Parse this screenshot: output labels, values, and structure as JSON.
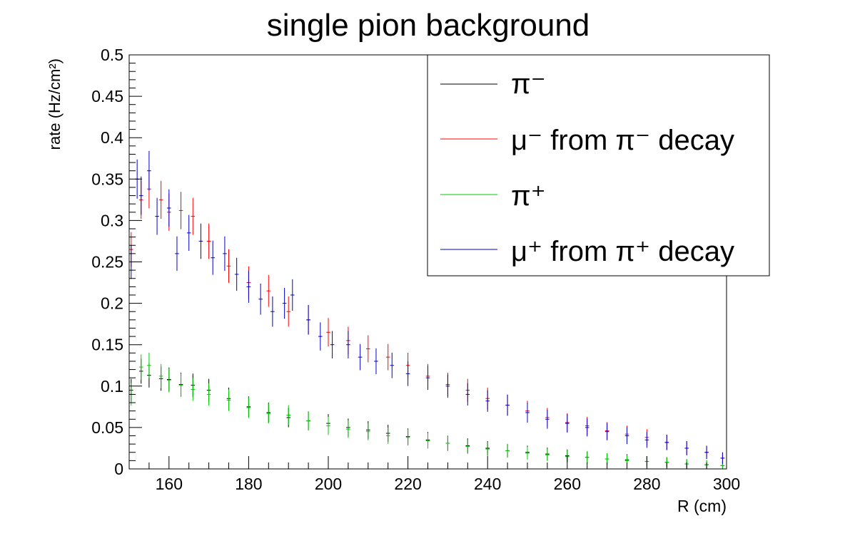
{
  "chart_data": {
    "type": "scatter",
    "title": "single pion background",
    "xlabel": "R (cm)",
    "ylabel": "rate (Hz/cm²)",
    "xlim": [
      150,
      300
    ],
    "ylim": [
      0,
      0.5
    ],
    "x_ticks": [
      "160",
      "180",
      "200",
      "220",
      "240",
      "260",
      "280",
      "300"
    ],
    "y_ticks": [
      "0",
      "0.05",
      "0.1",
      "0.15",
      "0.2",
      "0.25",
      "0.3",
      "0.35",
      "0.4",
      "0.45",
      "0.5"
    ],
    "grid": false,
    "legend_position": "top-right",
    "bin_width": 1,
    "series": [
      {
        "name": "π⁻",
        "legend_label": "π⁻",
        "color": "#000000",
        "points": [
          [
            150.5,
            0.095
          ],
          [
            153,
            0.118
          ],
          [
            155,
            0.113
          ],
          [
            158,
            0.109
          ],
          [
            160,
            0.108
          ],
          [
            163,
            0.102
          ],
          [
            166,
            0.101
          ],
          [
            170,
            0.095
          ],
          [
            175,
            0.085
          ],
          [
            180,
            0.075
          ],
          [
            185,
            0.068
          ],
          [
            190,
            0.062
          ],
          [
            195,
            0.058
          ],
          [
            200,
            0.055
          ],
          [
            205,
            0.05
          ],
          [
            210,
            0.047
          ],
          [
            215,
            0.043
          ],
          [
            220,
            0.039
          ],
          [
            225,
            0.035
          ],
          [
            230,
            0.031
          ],
          [
            235,
            0.028
          ],
          [
            240,
            0.025
          ],
          [
            245,
            0.022
          ],
          [
            250,
            0.02
          ],
          [
            255,
            0.018
          ],
          [
            260,
            0.016
          ],
          [
            265,
            0.014
          ],
          [
            270,
            0.012
          ],
          [
            275,
            0.011
          ],
          [
            280,
            0.009
          ],
          [
            285,
            0.008
          ],
          [
            290,
            0.006
          ],
          [
            295,
            0.005
          ],
          [
            299,
            0.004
          ]
        ]
      },
      {
        "name": "μ⁻ from π⁻ decay",
        "legend_label": "μ⁻ from π⁻ decay",
        "color": "#ff0000",
        "points": [
          [
            150.5,
            0.265
          ],
          [
            153,
            0.325
          ],
          [
            155,
            0.338
          ],
          [
            158,
            0.325
          ],
          [
            160,
            0.31
          ],
          [
            163,
            0.312
          ],
          [
            166,
            0.305
          ],
          [
            170,
            0.275
          ],
          [
            175,
            0.245
          ],
          [
            180,
            0.225
          ],
          [
            185,
            0.215
          ],
          [
            190,
            0.19
          ],
          [
            195,
            0.18
          ],
          [
            200,
            0.165
          ],
          [
            205,
            0.155
          ],
          [
            210,
            0.145
          ],
          [
            215,
            0.135
          ],
          [
            220,
            0.125
          ],
          [
            225,
            0.112
          ],
          [
            230,
            0.102
          ],
          [
            235,
            0.095
          ],
          [
            240,
            0.085
          ],
          [
            245,
            0.077
          ],
          [
            250,
            0.07
          ],
          [
            255,
            0.062
          ],
          [
            260,
            0.056
          ],
          [
            265,
            0.052
          ],
          [
            270,
            0.046
          ],
          [
            275,
            0.042
          ],
          [
            280,
            0.038
          ],
          [
            285,
            0.032
          ],
          [
            290,
            0.025
          ],
          [
            295,
            0.02
          ],
          [
            299,
            0.013
          ]
        ]
      },
      {
        "name": "π⁺",
        "legend_label": "π⁺",
        "color": "#00cc00",
        "points": [
          [
            150.5,
            0.09
          ],
          [
            153,
            0.123
          ],
          [
            155,
            0.125
          ],
          [
            158,
            0.112
          ],
          [
            160,
            0.107
          ],
          [
            163,
            0.101
          ],
          [
            166,
            0.096
          ],
          [
            170,
            0.09
          ],
          [
            175,
            0.083
          ],
          [
            180,
            0.074
          ],
          [
            185,
            0.067
          ],
          [
            190,
            0.065
          ],
          [
            195,
            0.058
          ],
          [
            200,
            0.052
          ],
          [
            205,
            0.048
          ],
          [
            210,
            0.045
          ],
          [
            215,
            0.04
          ],
          [
            220,
            0.038
          ],
          [
            225,
            0.034
          ],
          [
            230,
            0.031
          ],
          [
            235,
            0.027
          ],
          [
            240,
            0.024
          ],
          [
            245,
            0.022
          ],
          [
            250,
            0.019
          ],
          [
            255,
            0.017
          ],
          [
            260,
            0.015
          ],
          [
            265,
            0.014
          ],
          [
            270,
            0.012
          ],
          [
            275,
            0.01
          ],
          [
            280,
            0.009
          ],
          [
            285,
            0.008
          ],
          [
            290,
            0.006
          ],
          [
            295,
            0.005
          ],
          [
            299,
            0.004
          ]
        ]
      },
      {
        "name": "μ⁺ from π⁺ decay",
        "legend_label": "μ⁺ from π⁺ decay",
        "color": "#0000cc",
        "points": [
          [
            150.5,
            0.25
          ],
          [
            152,
            0.35
          ],
          [
            153,
            0.33
          ],
          [
            155,
            0.36
          ],
          [
            157,
            0.305
          ],
          [
            160,
            0.315
          ],
          [
            162,
            0.26
          ],
          [
            165,
            0.285
          ],
          [
            168,
            0.275
          ],
          [
            171,
            0.255
          ],
          [
            174,
            0.26
          ],
          [
            177,
            0.235
          ],
          [
            180,
            0.22
          ],
          [
            183,
            0.205
          ],
          [
            186,
            0.19
          ],
          [
            189,
            0.2
          ],
          [
            191,
            0.21
          ],
          [
            195,
            0.18
          ],
          [
            198,
            0.16
          ],
          [
            201,
            0.15
          ],
          [
            205,
            0.15
          ],
          [
            208,
            0.135
          ],
          [
            212,
            0.13
          ],
          [
            216,
            0.125
          ],
          [
            220,
            0.115
          ],
          [
            225,
            0.11
          ],
          [
            230,
            0.1
          ],
          [
            235,
            0.09
          ],
          [
            240,
            0.082
          ],
          [
            245,
            0.077
          ],
          [
            250,
            0.068
          ],
          [
            255,
            0.06
          ],
          [
            260,
            0.055
          ],
          [
            265,
            0.05
          ],
          [
            270,
            0.045
          ],
          [
            275,
            0.04
          ],
          [
            280,
            0.035
          ],
          [
            285,
            0.032
          ],
          [
            290,
            0.025
          ],
          [
            295,
            0.02
          ],
          [
            299,
            0.013
          ]
        ]
      }
    ]
  }
}
